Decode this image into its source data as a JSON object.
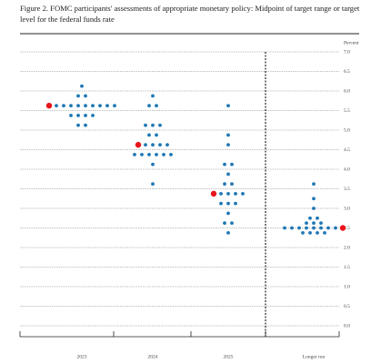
{
  "chart_data": {
    "type": "dot",
    "title": "Figure 2.  FOMC participants' assessments of appropriate monetary policy: Midpoint of target range or target level for the federal funds rate",
    "y_label": "Percent",
    "categories": [
      "2023",
      "2024",
      "2025",
      "Longer run"
    ],
    "dot_color": "#1f77b4",
    "median_color": "#e8141c",
    "dots": [
      [
        {
          "value": 6.125,
          "count": 1
        },
        {
          "value": 5.875,
          "count": 2
        },
        {
          "value": 5.625,
          "count": 9
        },
        {
          "value": 5.375,
          "count": 4
        },
        {
          "value": 5.125,
          "count": 2
        }
      ],
      [
        {
          "value": 5.875,
          "count": 1
        },
        {
          "value": 5.625,
          "count": 2
        },
        {
          "value": 5.125,
          "count": 3
        },
        {
          "value": 4.875,
          "count": 2
        },
        {
          "value": 4.625,
          "count": 4
        },
        {
          "value": 4.375,
          "count": 6
        },
        {
          "value": 4.125,
          "count": 1
        },
        {
          "value": 3.625,
          "count": 1
        }
      ],
      [
        {
          "value": 5.625,
          "count": 1
        },
        {
          "value": 4.875,
          "count": 1
        },
        {
          "value": 4.625,
          "count": 1
        },
        {
          "value": 4.125,
          "count": 2
        },
        {
          "value": 3.875,
          "count": 1
        },
        {
          "value": 3.625,
          "count": 2
        },
        {
          "value": 3.375,
          "count": 4
        },
        {
          "value": 3.125,
          "count": 3
        },
        {
          "value": 2.875,
          "count": 1
        },
        {
          "value": 2.625,
          "count": 2
        },
        {
          "value": 2.375,
          "count": 1
        }
      ],
      [
        {
          "value": 3.625,
          "count": 1
        },
        {
          "value": 3.25,
          "count": 1
        },
        {
          "value": 3.0,
          "count": 1
        },
        {
          "value": 2.75,
          "count": 2
        },
        {
          "value": 2.625,
          "count": 3
        },
        {
          "value": 2.5,
          "count": 8
        },
        {
          "value": 2.375,
          "count": 4
        }
      ]
    ],
    "medians": [
      5.625,
      4.625,
      3.375,
      2.5
    ],
    "ylim": [
      0,
      7
    ],
    "yticks": [
      {
        "value": 0,
        "label": "0.0"
      },
      0.5,
      {
        "value": 1,
        "label": "1.0"
      },
      1.5,
      {
        "value": 2,
        "label": "2.0"
      },
      2.5,
      {
        "value": 3,
        "label": "3.0"
      },
      3.5,
      {
        "value": 4,
        "label": "4.0"
      },
      4.5,
      {
        "value": 5,
        "label": "5.0"
      },
      5.5,
      {
        "value": 6,
        "label": "6.0"
      },
      6.5,
      {
        "value": 7,
        "label": "7.0"
      }
    ],
    "grid": true
  }
}
